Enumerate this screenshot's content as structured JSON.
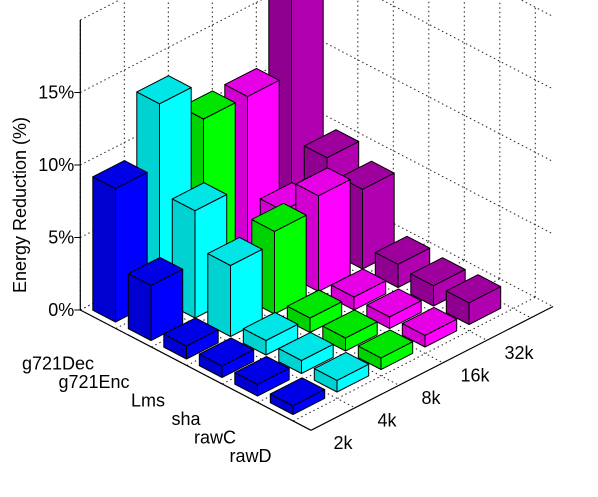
{
  "chart_data": {
    "type": "bar3d",
    "ylabel": "Energy Reduction (%)",
    "zlim": [
      0,
      15
    ],
    "z_ticks": [
      "0%",
      "5%",
      "10%",
      "15%"
    ],
    "z_tick_values": [
      0,
      5,
      10,
      15
    ],
    "grid": true,
    "rows": [
      "g721Dec",
      "g721Enc",
      "Lms",
      "sha",
      "rawC",
      "rawD"
    ],
    "columns": [
      "2k",
      "4k",
      "8k",
      "16k",
      "32k"
    ],
    "series": [
      {
        "name": "2k",
        "color": "#0000ff",
        "values": [
          9.2,
          3.8,
          0.9,
          0.8,
          0.8,
          0.6
        ]
      },
      {
        "name": "4k",
        "color": "#00ffff",
        "values": [
          13.5,
          7.4,
          4.9,
          1.0,
          0.9,
          0.8
        ]
      },
      {
        "name": "8k",
        "color": "#00ff00",
        "values": [
          10.9,
          1.2,
          5.7,
          1.0,
          0.9,
          0.8
        ]
      },
      {
        "name": "16k",
        "color": "#ff00ff",
        "values": [
          10.9,
          4.3,
          6.6,
          0.9,
          0.8,
          0.8
        ]
      },
      {
        "name": "32k",
        "color": "#b000b0",
        "values": [
          18.2,
          6.4,
          5.5,
          1.6,
          1.4,
          1.5
        ]
      }
    ]
  }
}
